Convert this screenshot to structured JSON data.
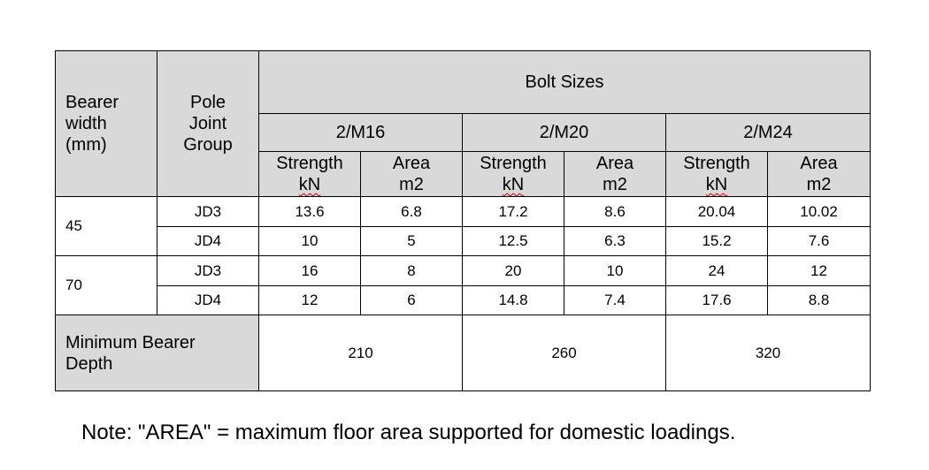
{
  "header": {
    "bearer_width": [
      "Bearer",
      "width",
      "(mm)"
    ],
    "pole_joint_group": [
      "Pole",
      "Joint",
      "Group"
    ],
    "bolt_sizes": "Bolt Sizes",
    "bolts": [
      "2/M16",
      "2/M20",
      "2/M24"
    ],
    "strength": [
      "Strength",
      "kN"
    ],
    "area": [
      "Area",
      "m2"
    ]
  },
  "rows": [
    {
      "width": "45",
      "group": "JD3",
      "values": [
        "13.6",
        "6.8",
        "17.2",
        "8.6",
        "20.04",
        "10.02"
      ]
    },
    {
      "width": "",
      "group": "JD4",
      "values": [
        "10",
        "5",
        "12.5",
        "6.3",
        "15.2",
        "7.6"
      ]
    },
    {
      "width": "70",
      "group": "JD3",
      "values": [
        "16",
        "8",
        "20",
        "10",
        "24",
        "12"
      ]
    },
    {
      "width": "",
      "group": "JD4",
      "values": [
        "12",
        "6",
        "14.8",
        "7.4",
        "17.6",
        "8.8"
      ]
    }
  ],
  "min_depth": {
    "label": [
      "Minimum Bearer",
      "Depth"
    ],
    "values": [
      "210",
      "260",
      "320"
    ]
  },
  "note": "Note: \"AREA\" = maximum floor area supported for domestic loadings."
}
